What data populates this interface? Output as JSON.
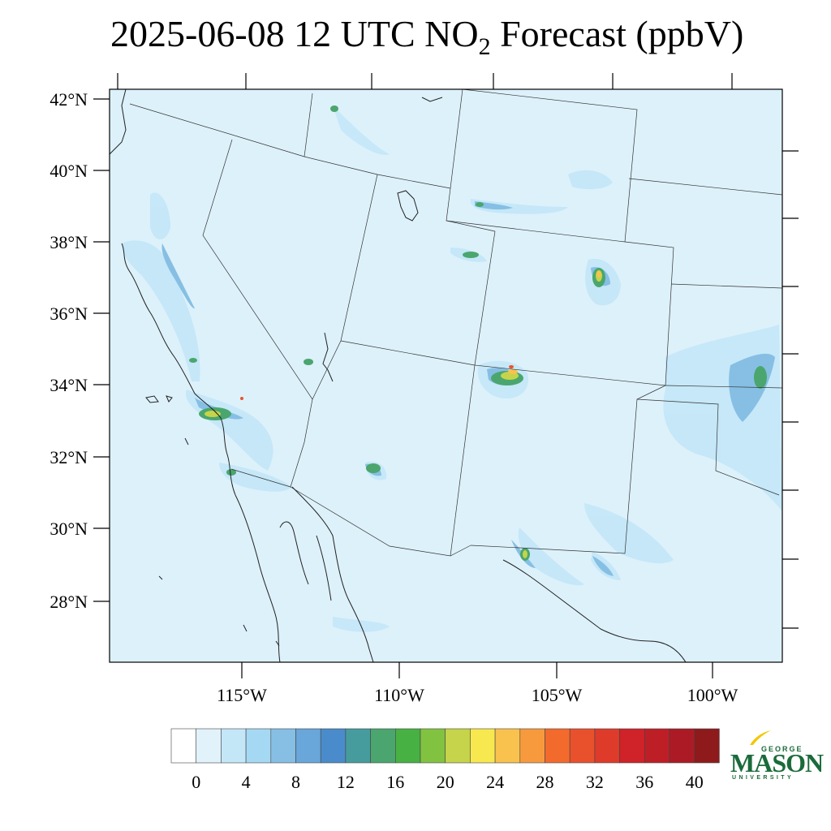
{
  "title": {
    "prefix": "2025-06-08 12 UTC NO",
    "subscript": "2",
    "suffix": " Forecast (ppbV)"
  },
  "map": {
    "lat_labels": [
      "42°N",
      "40°N",
      "38°N",
      "36°N",
      "34°N",
      "32°N",
      "30°N",
      "28°N"
    ],
    "lon_labels": [
      "115°W",
      "110°W",
      "105°W",
      "100°W"
    ],
    "background_color": "#ddf1fb"
  },
  "colorbar": {
    "colors": [
      "#ffffff",
      "#e1f2fb",
      "#c4e7f8",
      "#a5d8f3",
      "#86bfe3",
      "#69a6d9",
      "#4a8ccb",
      "#469c9d",
      "#4aa66e",
      "#48b144",
      "#82c241",
      "#c5d44a",
      "#f8e850",
      "#f9c24e",
      "#f79a3e",
      "#f36a2d",
      "#e9512d",
      "#de3b2b",
      "#cf2229",
      "#be1f27",
      "#ac1b25",
      "#8f1a1c"
    ],
    "labels": [
      "0",
      "4",
      "8",
      "12",
      "16",
      "20",
      "24",
      "28",
      "32",
      "36",
      "40"
    ]
  },
  "logo": {
    "line1": "GEORGE",
    "line2": "MASON",
    "line3": "UNIVERSITY",
    "color": "#1b6b3a",
    "accent": "#f2c700"
  }
}
